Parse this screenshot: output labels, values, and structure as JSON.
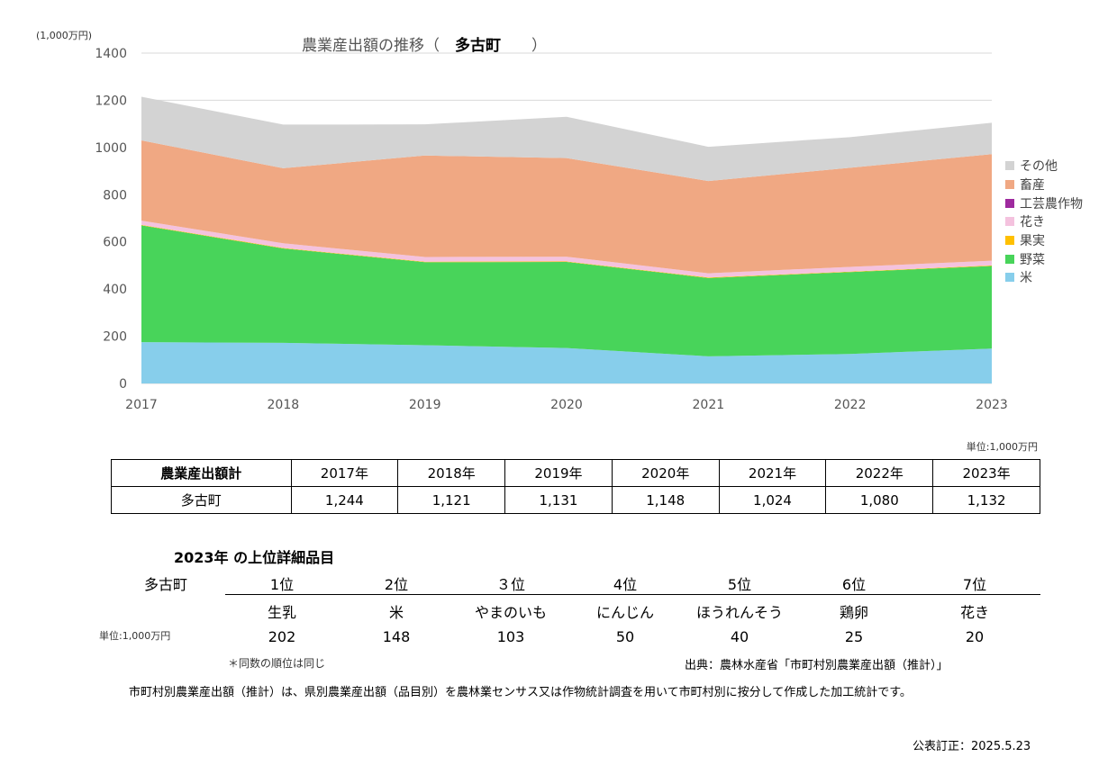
{
  "chart_data": {
    "type": "area",
    "title_prefix": "農業産出額の推移（",
    "title_town": "多古町",
    "title_suffix": "）",
    "unit": "(1,000万円)",
    "x": [
      "2017",
      "2018",
      "2019",
      "2020",
      "2021",
      "2022",
      "2023"
    ],
    "ylim": [
      0,
      1400
    ],
    "yticks": [
      "0",
      "200",
      "400",
      "600",
      "800",
      "1000",
      "1200",
      "1400"
    ],
    "grid": true,
    "legend_position": "right",
    "series": [
      {
        "name": "米",
        "color": "#87CEEB",
        "values": [
          175,
          172,
          162,
          150,
          115,
          125,
          148
        ]
      },
      {
        "name": "野菜",
        "color": "#48D45A",
        "values": [
          495,
          400,
          352,
          365,
          332,
          347,
          350
        ]
      },
      {
        "name": "果実",
        "color": "#FFC000",
        "values": [
          2,
          2,
          2,
          2,
          2,
          2,
          2
        ]
      },
      {
        "name": "花き",
        "color": "#F4C2DE",
        "values": [
          18,
          20,
          20,
          20,
          18,
          20,
          20
        ]
      },
      {
        "name": "工芸農作物",
        "color": "#9E2A9E",
        "values": [
          0,
          0,
          0,
          0,
          0,
          0,
          0
        ]
      },
      {
        "name": "畜産",
        "color": "#F0A883",
        "values": [
          340,
          318,
          430,
          418,
          391,
          420,
          452
        ]
      },
      {
        "name": "その他",
        "color": "#D3D3D3",
        "values": [
          185,
          185,
          132,
          175,
          145,
          130,
          133
        ]
      }
    ],
    "legend_order": [
      "その他",
      "畜産",
      "工芸農作物",
      "花き",
      "果実",
      "野菜",
      "米"
    ]
  },
  "totals_table": {
    "unit": "単位:1,000万円",
    "header_label": "農業産出額計",
    "years": [
      "2017年",
      "2018年",
      "2019年",
      "2020年",
      "2021年",
      "2022年",
      "2023年"
    ],
    "row_label": "多古町",
    "values": [
      "1,244",
      "1,121",
      "1,131",
      "1,148",
      "1,024",
      "1,080",
      "1,132"
    ]
  },
  "top_items": {
    "title": "2023年 の上位詳細品目",
    "town": "多古町",
    "unit": "単位:1,000万円",
    "ranks": [
      "1位",
      "2位",
      "３位",
      "4位",
      "5位",
      "6位",
      "7位"
    ],
    "items": [
      "生乳",
      "米",
      "やまのいも",
      "にんじん",
      "ほうれんそう",
      "鶏卵",
      "花き"
    ],
    "values": [
      "202",
      "148",
      "103",
      "50",
      "40",
      "25",
      "20"
    ],
    "note": "＊同数の順位は同じ",
    "source": "出典：農林水産省「市町村別農業産出額（推計）」"
  },
  "explanation": "市町村別農業産出額（推計）は、県別農業産出額（品目別）を農林業センサス又は作物統計調査を用いて市町村別に按分して作成した加工統計です。",
  "published": "公表訂正：2025.5.23"
}
